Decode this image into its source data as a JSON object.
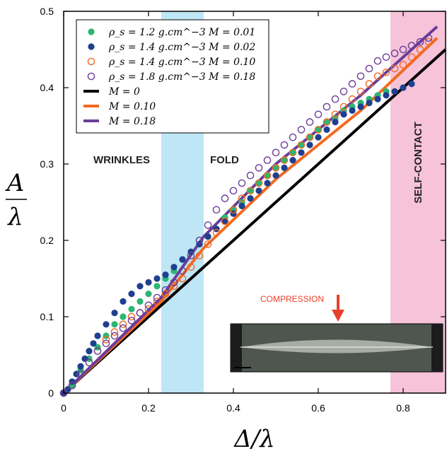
{
  "chart_data": {
    "type": "scatter",
    "xlabel": "Δ/λ",
    "ylabel_numerator": "A",
    "ylabel_denominator": "λ",
    "xlim": [
      0,
      0.9
    ],
    "ylim": [
      0,
      0.5
    ],
    "xticks": [
      0,
      0.2,
      0.4,
      0.6,
      0.8
    ],
    "xtick_labels": [
      "0",
      "0.2",
      "0.4",
      "0.6",
      "0.8"
    ],
    "yticks": [
      0,
      0.1,
      0.2,
      0.3,
      0.4,
      0.5
    ],
    "ytick_labels": [
      "0",
      "0.1",
      "0.2",
      "0.3",
      "0.4",
      "0.5"
    ],
    "regions": [
      {
        "label": "WRINKLES",
        "x_range": [
          0,
          0.23
        ],
        "color": null
      },
      {
        "label": "",
        "x_range": [
          0.23,
          0.33
        ],
        "color": "#bfe6f5"
      },
      {
        "label": "FOLD",
        "x_range": [
          0.33,
          0.77
        ],
        "color": null
      },
      {
        "label": "SELF-CONTACT",
        "x_range": [
          0.77,
          0.9
        ],
        "color": "#f6c3d9"
      }
    ],
    "series": [
      {
        "name": "ρ_s = 1.2 g.cm^−3   M = 0.01",
        "kind": "points",
        "marker": "filled",
        "color": "#2bb673",
        "x": [
          0.0,
          0.02,
          0.04,
          0.06,
          0.08,
          0.1,
          0.12,
          0.14,
          0.16,
          0.18,
          0.2,
          0.22,
          0.24,
          0.26,
          0.28,
          0.3,
          0.32,
          0.34,
          0.36,
          0.38,
          0.4,
          0.42,
          0.44,
          0.46,
          0.48,
          0.5,
          0.52,
          0.54,
          0.56,
          0.58,
          0.6,
          0.62,
          0.64,
          0.66,
          0.68,
          0.7,
          0.72,
          0.74,
          0.76
        ],
        "y": [
          0.0,
          0.01,
          0.03,
          0.045,
          0.06,
          0.075,
          0.09,
          0.1,
          0.11,
          0.12,
          0.13,
          0.14,
          0.15,
          0.16,
          0.175,
          0.185,
          0.195,
          0.205,
          0.215,
          0.23,
          0.24,
          0.25,
          0.265,
          0.275,
          0.285,
          0.295,
          0.305,
          0.315,
          0.325,
          0.335,
          0.345,
          0.355,
          0.36,
          0.37,
          0.375,
          0.38,
          0.385,
          0.39,
          0.395
        ]
      },
      {
        "name": "ρ_s = 1.4 g.cm^−3   M = 0.02",
        "kind": "points",
        "marker": "filled",
        "color": "#1f3f8f",
        "x": [
          0.0,
          0.01,
          0.02,
          0.03,
          0.04,
          0.05,
          0.06,
          0.07,
          0.08,
          0.1,
          0.12,
          0.14,
          0.16,
          0.18,
          0.2,
          0.22,
          0.24,
          0.26,
          0.28,
          0.3,
          0.32,
          0.34,
          0.36,
          0.38,
          0.4,
          0.42,
          0.44,
          0.46,
          0.48,
          0.5,
          0.52,
          0.54,
          0.56,
          0.58,
          0.6,
          0.62,
          0.64,
          0.66,
          0.68,
          0.7,
          0.72,
          0.74,
          0.76,
          0.78,
          0.8,
          0.82
        ],
        "y": [
          0.0,
          0.005,
          0.015,
          0.025,
          0.035,
          0.045,
          0.055,
          0.065,
          0.075,
          0.09,
          0.105,
          0.12,
          0.13,
          0.14,
          0.145,
          0.15,
          0.155,
          0.165,
          0.175,
          0.185,
          0.195,
          0.205,
          0.215,
          0.225,
          0.235,
          0.245,
          0.255,
          0.265,
          0.275,
          0.285,
          0.295,
          0.305,
          0.315,
          0.325,
          0.335,
          0.345,
          0.355,
          0.365,
          0.37,
          0.375,
          0.38,
          0.385,
          0.39,
          0.395,
          0.4,
          0.405
        ]
      },
      {
        "name": "ρ_s = 1.4 g.cm^−3   M = 0.10",
        "kind": "points",
        "marker": "open",
        "color": "#f26a21",
        "x": [
          0.0,
          0.02,
          0.04,
          0.06,
          0.08,
          0.1,
          0.12,
          0.14,
          0.16,
          0.18,
          0.2,
          0.22,
          0.24,
          0.26,
          0.28,
          0.3,
          0.32,
          0.34,
          0.36,
          0.38,
          0.4,
          0.42,
          0.44,
          0.46,
          0.48,
          0.5,
          0.52,
          0.54,
          0.56,
          0.58,
          0.6,
          0.62,
          0.64,
          0.66,
          0.68,
          0.7,
          0.72,
          0.74,
          0.76,
          0.78,
          0.8,
          0.82,
          0.84,
          0.86
        ],
        "y": [
          0.0,
          0.01,
          0.025,
          0.04,
          0.055,
          0.07,
          0.08,
          0.09,
          0.1,
          0.105,
          0.11,
          0.12,
          0.13,
          0.14,
          0.15,
          0.165,
          0.18,
          0.195,
          0.21,
          0.225,
          0.24,
          0.255,
          0.265,
          0.275,
          0.285,
          0.295,
          0.305,
          0.315,
          0.325,
          0.335,
          0.345,
          0.355,
          0.365,
          0.375,
          0.385,
          0.395,
          0.405,
          0.415,
          0.42,
          0.425,
          0.43,
          0.44,
          0.45,
          0.46
        ]
      },
      {
        "name": "ρ_s = 1.8 g.cm^−3   M = 0.18",
        "kind": "points",
        "marker": "open",
        "color": "#6a3d9a",
        "x": [
          0.0,
          0.02,
          0.04,
          0.06,
          0.08,
          0.1,
          0.12,
          0.14,
          0.16,
          0.18,
          0.2,
          0.22,
          0.24,
          0.26,
          0.28,
          0.3,
          0.32,
          0.34,
          0.36,
          0.38,
          0.4,
          0.42,
          0.44,
          0.46,
          0.48,
          0.5,
          0.52,
          0.54,
          0.56,
          0.58,
          0.6,
          0.62,
          0.64,
          0.66,
          0.68,
          0.7,
          0.72,
          0.74,
          0.76,
          0.78,
          0.8,
          0.82,
          0.84,
          0.86
        ],
        "y": [
          0.0,
          0.01,
          0.025,
          0.04,
          0.055,
          0.065,
          0.075,
          0.085,
          0.095,
          0.105,
          0.115,
          0.125,
          0.135,
          0.145,
          0.16,
          0.18,
          0.2,
          0.22,
          0.24,
          0.255,
          0.265,
          0.275,
          0.285,
          0.295,
          0.305,
          0.315,
          0.325,
          0.335,
          0.345,
          0.355,
          0.365,
          0.375,
          0.385,
          0.395,
          0.405,
          0.415,
          0.425,
          0.435,
          0.44,
          0.445,
          0.45,
          0.455,
          0.46,
          0.465
        ]
      },
      {
        "name": "M = 0",
        "kind": "line",
        "color": "#000000",
        "x": [
          0.0,
          0.9
        ],
        "y": [
          0.0,
          0.45
        ]
      },
      {
        "name": "M = 0.10",
        "kind": "line",
        "color": "#f26a21",
        "x": [
          0.0,
          0.23,
          0.33,
          0.5,
          0.7,
          0.88
        ],
        "y": [
          0.0,
          0.12,
          0.19,
          0.28,
          0.37,
          0.465
        ]
      },
      {
        "name": "M = 0.18",
        "kind": "line",
        "color": "#6a3d9a",
        "x": [
          0.0,
          0.23,
          0.33,
          0.5,
          0.7,
          0.88
        ],
        "y": [
          0.0,
          0.125,
          0.205,
          0.3,
          0.39,
          0.48
        ]
      }
    ],
    "inset": {
      "label": "COMPRESSION"
    }
  }
}
